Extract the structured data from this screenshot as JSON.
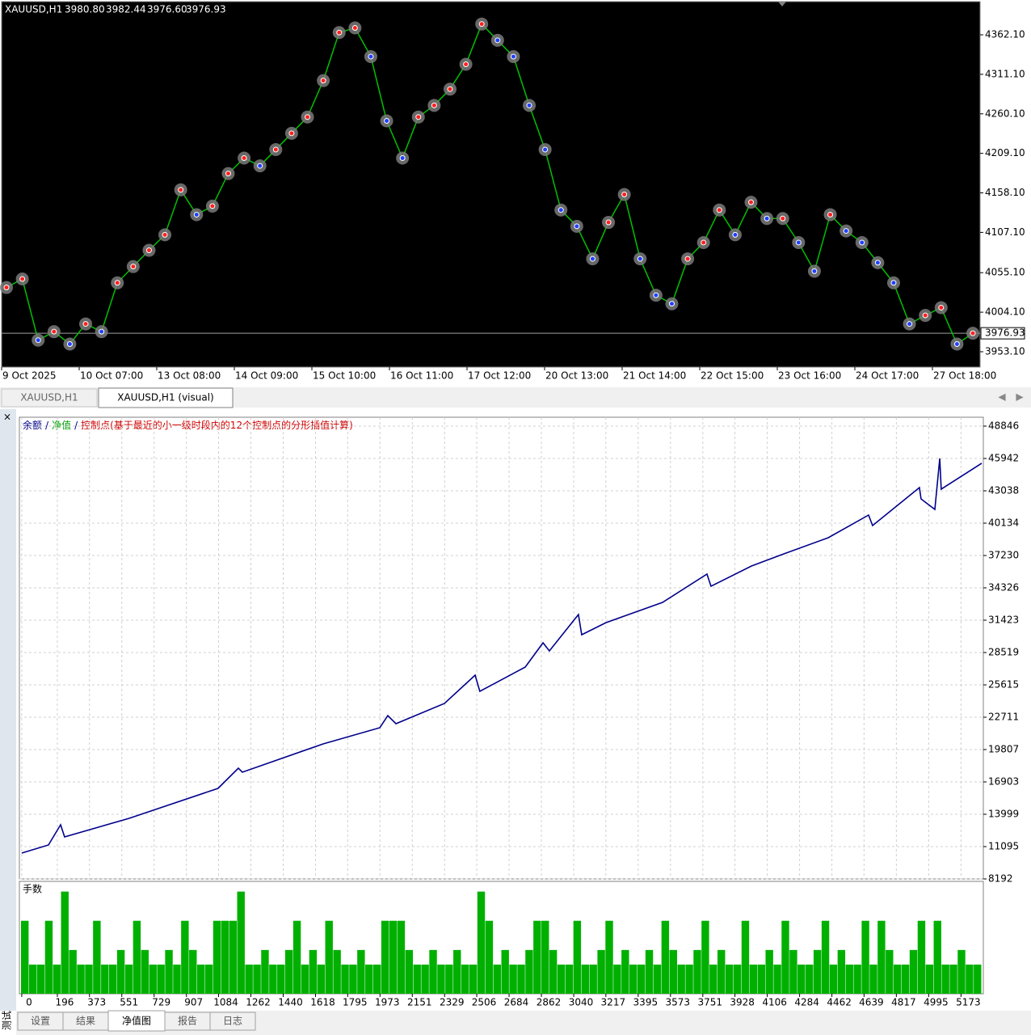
{
  "tabs": {
    "top": [
      "XAUUSD,H1",
      "XAUUSD,H1 (visual)"
    ],
    "bottom": [
      "设置",
      "结果",
      "净值图",
      "报告",
      "日志"
    ],
    "side": "测试"
  },
  "chart_data": [
    {
      "type": "line",
      "title": "XAUUSD,H1",
      "quote": {
        "values": [
          3980.8,
          3982.44,
          3976.6,
          3976.93
        ],
        "value_labels": [
          "3980.80",
          "3982.44",
          "3976.60",
          "3976.93"
        ]
      },
      "last": 3976.93,
      "xtick_labels": [
        "9 Oct 2025",
        "10 Oct 07:00",
        "13 Oct 08:00",
        "14 Oct 09:00",
        "15 Oct 10:00",
        "16 Oct 11:00",
        "17 Oct 12:00",
        "20 Oct 13:00",
        "21 Oct 14:00",
        "22 Oct 15:00",
        "23 Oct 16:00",
        "24 Oct 17:00",
        "27 Oct 18:00"
      ],
      "values": [
        4036,
        4047,
        3968,
        3979,
        3963,
        3989,
        3979,
        4042,
        4063,
        4084,
        4104,
        4162,
        4130,
        4141,
        4183,
        4203,
        4193,
        4214,
        4235,
        4256,
        4303,
        4365,
        4371,
        4334,
        4251,
        4203,
        4256,
        4271,
        4292,
        4324,
        4376,
        4355,
        4334,
        4271,
        4214,
        4136,
        4115,
        4073,
        4120,
        4156,
        4073,
        4026,
        4015,
        4073,
        4094,
        4136,
        4104,
        4146,
        4125,
        4125,
        4094,
        4057,
        4130,
        4109,
        4094,
        4068,
        4042,
        3989,
        4000,
        4010,
        3963,
        3976.93
      ],
      "color": "#00c000",
      "ylim": [
        3934.3,
        4404.9
      ],
      "yticks": [
        {
          "value": 4362.1,
          "label": "4362.10"
        },
        {
          "value": 4311.1,
          "label": "4311.10"
        },
        {
          "value": 4260.1,
          "label": "4260.10"
        },
        {
          "value": 4209.1,
          "label": "4209.10"
        },
        {
          "value": 4158.1,
          "label": "4158.10"
        },
        {
          "value": 4107.1,
          "label": "4107.10"
        },
        {
          "value": 4055.1,
          "label": "4055.10"
        },
        {
          "value": 4004.1,
          "label": "4004.10"
        },
        {
          "value": 3953.1,
          "label": "3953.10"
        }
      ]
    },
    {
      "type": "line",
      "legend": [
        "余额",
        "/",
        "净值",
        "/",
        "控制点(基于最近的小一级时段内的12个控制点的分形插值计算)"
      ],
      "x": [
        0,
        147,
        214,
        236,
        592,
        1081,
        1193,
        1215,
        1660,
        1972,
        2016,
        2061,
        2328,
        2497,
        2523,
        2773,
        2871,
        2906,
        3066,
        3084,
        3218,
        3529,
        3774,
        3796,
        4019,
        4197,
        4442,
        4664,
        4686,
        4944,
        4953,
        5029,
        5056,
        5064,
        5287
      ],
      "values": [
        10515,
        11241,
        13056,
        11967,
        13637,
        16323,
        18138,
        17775,
        20316,
        21768,
        22857,
        22131,
        23946,
        26487,
        25035,
        27213,
        29391,
        28665,
        31931,
        30117,
        31206,
        33021,
        35562,
        34473,
        36288,
        37377,
        38829,
        40862,
        39918,
        43330,
        42314,
        41370,
        45944,
        43186,
        45508
      ],
      "color": "#00008b",
      "xlim": [
        -13,
        5296
      ],
      "xticks": [
        0,
        196,
        373,
        551,
        729,
        907,
        1084,
        1262,
        1440,
        1618,
        1795,
        1973,
        2151,
        2329,
        2506,
        2684,
        2862,
        3040,
        3217,
        3395,
        3573,
        3751,
        3928,
        4106,
        4284,
        4462,
        4639,
        4817,
        4995,
        5173
      ],
      "ylim": [
        8192,
        49645
      ],
      "yticks": [
        48846,
        45942,
        43038,
        40134,
        37230,
        34326,
        31423,
        28519,
        25615,
        22711,
        19807,
        16903,
        13999,
        11095,
        8192
      ],
      "grid": true
    },
    {
      "type": "bar",
      "title": "手数",
      "color": "#00b000",
      "ylim": [
        0,
        0.077
      ],
      "values": [
        0.05,
        0.02,
        0.02,
        0.05,
        0.02,
        0.07,
        0.03,
        0.02,
        0.02,
        0.05,
        0.02,
        0.02,
        0.03,
        0.02,
        0.05,
        0.03,
        0.02,
        0.02,
        0.03,
        0.02,
        0.05,
        0.03,
        0.02,
        0.02,
        0.05,
        0.05,
        0.05,
        0.07,
        0.02,
        0.02,
        0.03,
        0.02,
        0.02,
        0.03,
        0.05,
        0.02,
        0.03,
        0.02,
        0.05,
        0.03,
        0.02,
        0.02,
        0.03,
        0.02,
        0.02,
        0.05,
        0.05,
        0.05,
        0.03,
        0.02,
        0.02,
        0.03,
        0.02,
        0.02,
        0.03,
        0.02,
        0.02,
        0.07,
        0.05,
        0.02,
        0.03,
        0.02,
        0.02,
        0.03,
        0.05,
        0.05,
        0.03,
        0.02,
        0.02,
        0.05,
        0.02,
        0.02,
        0.03,
        0.05,
        0.02,
        0.03,
        0.02,
        0.02,
        0.03,
        0.02,
        0.05,
        0.03,
        0.02,
        0.02,
        0.03,
        0.05,
        0.02,
        0.03,
        0.02,
        0.02,
        0.05,
        0.02,
        0.02,
        0.03,
        0.02,
        0.05,
        0.03,
        0.02,
        0.02,
        0.03,
        0.05,
        0.02,
        0.03,
        0.02,
        0.02,
        0.05,
        0.02,
        0.05,
        0.03,
        0.02,
        0.02,
        0.03,
        0.05,
        0.02,
        0.05,
        0.02,
        0.02,
        0.03,
        0.02,
        0.02
      ]
    }
  ]
}
